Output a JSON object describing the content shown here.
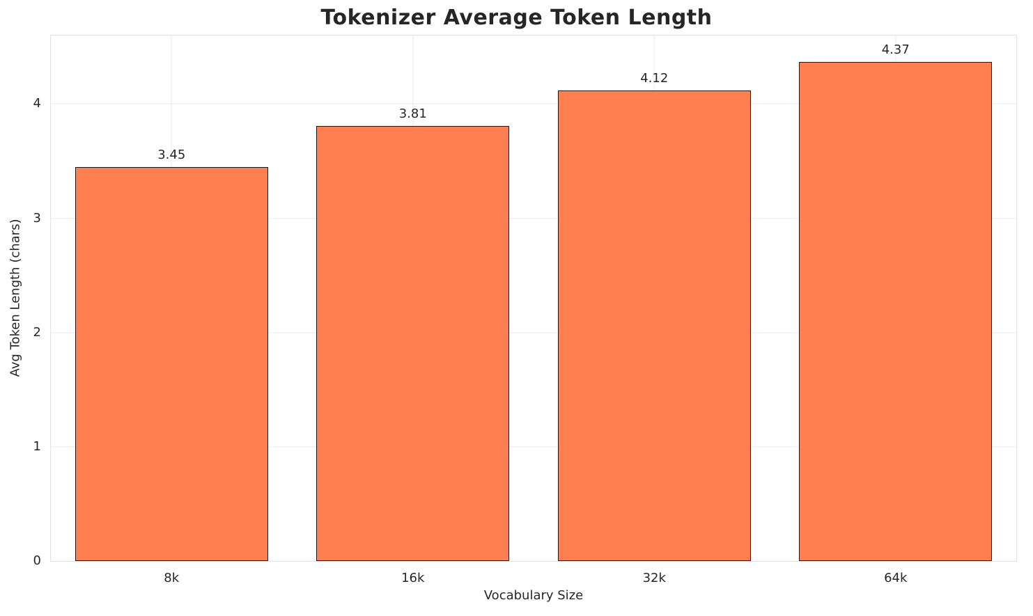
{
  "chart_data": {
    "type": "bar",
    "title": "Tokenizer Average Token Length",
    "xlabel": "Vocabulary Size",
    "ylabel": "Avg Token Length (chars)",
    "categories": [
      "8k",
      "16k",
      "32k",
      "64k"
    ],
    "values": [
      3.45,
      3.81,
      4.12,
      4.37
    ],
    "value_labels": [
      "3.45",
      "3.81",
      "4.12",
      "4.37"
    ],
    "yticks": [
      0,
      1,
      2,
      3,
      4
    ],
    "ylim": [
      0,
      4.6
    ],
    "grid": true,
    "legend_position": "none",
    "bar_color": "#FF7F50",
    "bar_edge_color": "#1a1a1a",
    "bar_width_fraction": 0.8
  }
}
